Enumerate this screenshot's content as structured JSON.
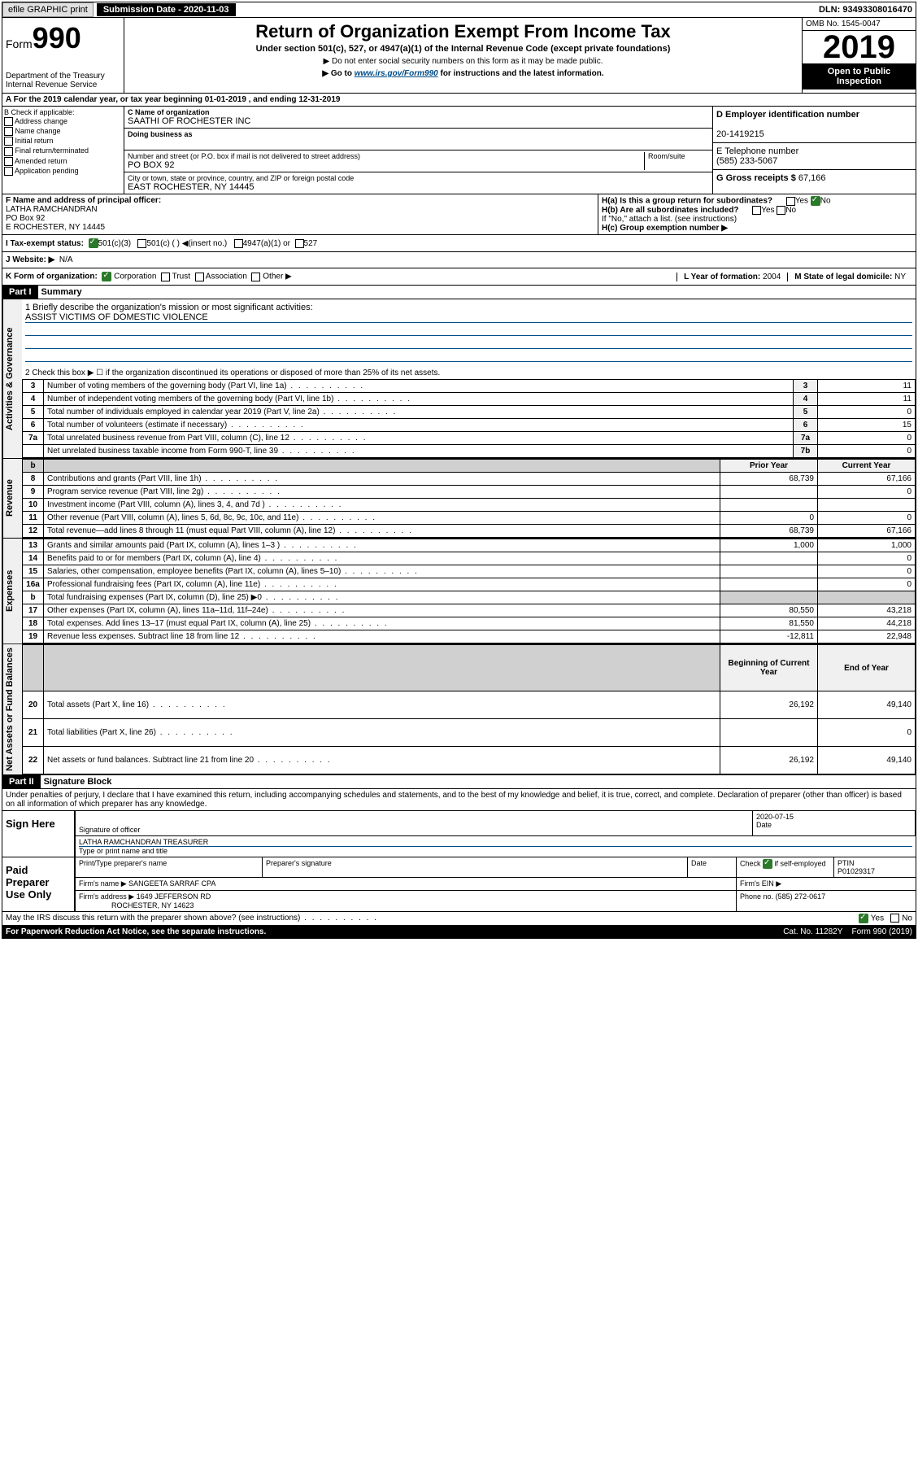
{
  "topbar": {
    "efile": "efile GRAPHIC print",
    "submission": "Submission Date - 2020-11-03",
    "dln": "DLN: 93493308016470"
  },
  "header": {
    "form_label": "Form",
    "form_number": "990",
    "dept": "Department of the Treasury Internal Revenue Service",
    "title": "Return of Organization Exempt From Income Tax",
    "subtitle": "Under section 501(c), 527, or 4947(a)(1) of the Internal Revenue Code (except private foundations)",
    "note1": "▶ Do not enter social security numbers on this form as it may be made public.",
    "note2_pre": "▶ Go to ",
    "note2_link": "www.irs.gov/Form990",
    "note2_post": " for instructions and the latest information.",
    "omb": "OMB No. 1545-0047",
    "year": "2019",
    "open": "Open to Public Inspection"
  },
  "period": "A For the 2019 calendar year, or tax year beginning 01-01-2019     , and ending 12-31-2019",
  "section_b": {
    "header": "B Check if applicable:",
    "items": [
      "Address change",
      "Name change",
      "Initial return",
      "Final return/terminated",
      "Amended return",
      "Application pending"
    ]
  },
  "section_c": {
    "name_lbl": "C Name of organization",
    "name": "SAATHI OF ROCHESTER INC",
    "dba_lbl": "Doing business as",
    "addr_lbl": "Number and street (or P.O. box if mail is not delivered to street address)",
    "addr": "PO BOX 92",
    "room_lbl": "Room/suite",
    "city_lbl": "City or town, state or province, country, and ZIP or foreign postal code",
    "city": "EAST ROCHESTER, NY  14445"
  },
  "section_d": {
    "lbl": "D Employer identification number",
    "val": "20-1419215"
  },
  "section_e": {
    "lbl": "E Telephone number",
    "val": "(585) 233-5067"
  },
  "section_g": {
    "lbl": "G Gross receipts $",
    "val": "67,166"
  },
  "section_f": {
    "lbl": "F  Name and address of principal officer:",
    "name": "LATHA RAMCHANDRAN",
    "addr1": "PO Box 92",
    "addr2": "E ROCHESTER, NY  14445"
  },
  "section_h": {
    "ha": "H(a)  Is this a group return for subordinates?",
    "hb": "H(b)  Are all subordinates included?",
    "hb_note": "If \"No,\" attach a list. (see instructions)",
    "hc": "H(c)  Group exemption number ▶",
    "yes": "Yes",
    "no": "No"
  },
  "tax_status": {
    "lbl": "I     Tax-exempt status:",
    "opts": [
      "501(c)(3)",
      "501(c) (  ) ◀(insert no.)",
      "4947(a)(1) or",
      "527"
    ]
  },
  "website": {
    "lbl": "J    Website: ▶",
    "val": "N/A"
  },
  "k_org": {
    "lbl": "K Form of organization:",
    "opts": [
      "Corporation",
      "Trust",
      "Association",
      "Other ▶"
    ],
    "l_lbl": "L Year of formation:",
    "l_val": "2004",
    "m_lbl": "M State of legal domicile:",
    "m_val": "NY"
  },
  "part1": {
    "header": "Part I",
    "title": "Summary",
    "line1_lbl": "1   Briefly describe the organization's mission or most significant activities:",
    "mission": "ASSIST VICTIMS OF DOMESTIC VIOLENCE",
    "line2": "2   Check this box ▶ ☐  if the organization discontinued its operations or disposed of more than 25% of its net assets.",
    "governance_label": "Activities & Governance",
    "revenue_label": "Revenue",
    "expenses_label": "Expenses",
    "netassets_label": "Net Assets or Fund Balances",
    "rows_gov": [
      {
        "n": "3",
        "d": "Number of voting members of the governing body (Part VI, line 1a)",
        "b": "3",
        "v": "11"
      },
      {
        "n": "4",
        "d": "Number of independent voting members of the governing body (Part VI, line 1b)",
        "b": "4",
        "v": "11"
      },
      {
        "n": "5",
        "d": "Total number of individuals employed in calendar year 2019 (Part V, line 2a)",
        "b": "5",
        "v": "0"
      },
      {
        "n": "6",
        "d": "Total number of volunteers (estimate if necessary)",
        "b": "6",
        "v": "15"
      },
      {
        "n": "7a",
        "d": "Total unrelated business revenue from Part VIII, column (C), line 12",
        "b": "7a",
        "v": "0"
      },
      {
        "n": "",
        "d": "Net unrelated business taxable income from Form 990-T, line 39",
        "b": "7b",
        "v": "0"
      }
    ],
    "hdr_prior": "Prior Year",
    "hdr_current": "Current Year",
    "rows_rev": [
      {
        "n": "8",
        "d": "Contributions and grants (Part VIII, line 1h)",
        "p": "68,739",
        "c": "67,166"
      },
      {
        "n": "9",
        "d": "Program service revenue (Part VIII, line 2g)",
        "p": "",
        "c": "0"
      },
      {
        "n": "10",
        "d": "Investment income (Part VIII, column (A), lines 3, 4, and 7d )",
        "p": "",
        "c": ""
      },
      {
        "n": "11",
        "d": "Other revenue (Part VIII, column (A), lines 5, 6d, 8c, 9c, 10c, and 11e)",
        "p": "0",
        "c": "0"
      },
      {
        "n": "12",
        "d": "Total revenue—add lines 8 through 11 (must equal Part VIII, column (A), line 12)",
        "p": "68,739",
        "c": "67,166"
      }
    ],
    "rows_exp": [
      {
        "n": "13",
        "d": "Grants and similar amounts paid (Part IX, column (A), lines 1–3 )",
        "p": "1,000",
        "c": "1,000"
      },
      {
        "n": "14",
        "d": "Benefits paid to or for members (Part IX, column (A), line 4)",
        "p": "",
        "c": "0"
      },
      {
        "n": "15",
        "d": "Salaries, other compensation, employee benefits (Part IX, column (A), lines 5–10)",
        "p": "",
        "c": "0"
      },
      {
        "n": "16a",
        "d": "Professional fundraising fees (Part IX, column (A), line 11e)",
        "p": "",
        "c": "0"
      },
      {
        "n": "b",
        "d": "Total fundraising expenses (Part IX, column (D), line 25) ▶0",
        "p": "shaded",
        "c": "shaded"
      },
      {
        "n": "17",
        "d": "Other expenses (Part IX, column (A), lines 11a–11d, 11f–24e)",
        "p": "80,550",
        "c": "43,218"
      },
      {
        "n": "18",
        "d": "Total expenses. Add lines 13–17 (must equal Part IX, column (A), line 25)",
        "p": "81,550",
        "c": "44,218"
      },
      {
        "n": "19",
        "d": "Revenue less expenses. Subtract line 18 from line 12",
        "p": "-12,811",
        "c": "22,948"
      }
    ],
    "hdr_begin": "Beginning of Current Year",
    "hdr_end": "End of Year",
    "rows_net": [
      {
        "n": "20",
        "d": "Total assets (Part X, line 16)",
        "p": "26,192",
        "c": "49,140"
      },
      {
        "n": "21",
        "d": "Total liabilities (Part X, line 26)",
        "p": "",
        "c": "0"
      },
      {
        "n": "22",
        "d": "Net assets or fund balances. Subtract line 21 from line 20",
        "p": "26,192",
        "c": "49,140"
      }
    ]
  },
  "part2": {
    "header": "Part II",
    "title": "Signature Block",
    "declaration": "Under penalties of perjury, I declare that I have examined this return, including accompanying schedules and statements, and to the best of my knowledge and belief, it is true, correct, and complete. Declaration of preparer (other than officer) is based on all information of which preparer has any knowledge.",
    "sign_here": "Sign Here",
    "sig_officer": "Signature of officer",
    "sig_date": "2020-07-15",
    "date_lbl": "Date",
    "officer_name": "LATHA RAMCHANDRAN  TREASURER",
    "name_title_lbl": "Type or print name and title",
    "paid_preparer": "Paid Preparer Use Only",
    "prep_name_lbl": "Print/Type preparer's name",
    "prep_sig_lbl": "Preparer's signature",
    "check_self": "Check",
    "if_self": "if self-employed",
    "ptin_lbl": "PTIN",
    "ptin": "P01029317",
    "firm_name_lbl": "Firm's name   ▶",
    "firm_name": "SANGEETA SARRAF CPA",
    "firm_ein_lbl": "Firm's EIN ▶",
    "firm_addr_lbl": "Firm's address ▶",
    "firm_addr1": "1649 JEFFERSON RD",
    "firm_addr2": "ROCHESTER, NY  14623",
    "phone_lbl": "Phone no.",
    "phone": "(585) 272-0617",
    "discuss": "May the IRS discuss this return with the preparer shown above? (see instructions)",
    "yes": "Yes",
    "no": "No"
  },
  "footer": {
    "paperwork": "For Paperwork Reduction Act Notice, see the separate instructions.",
    "cat": "Cat. No. 11282Y",
    "form": "Form 990 (2019)"
  }
}
